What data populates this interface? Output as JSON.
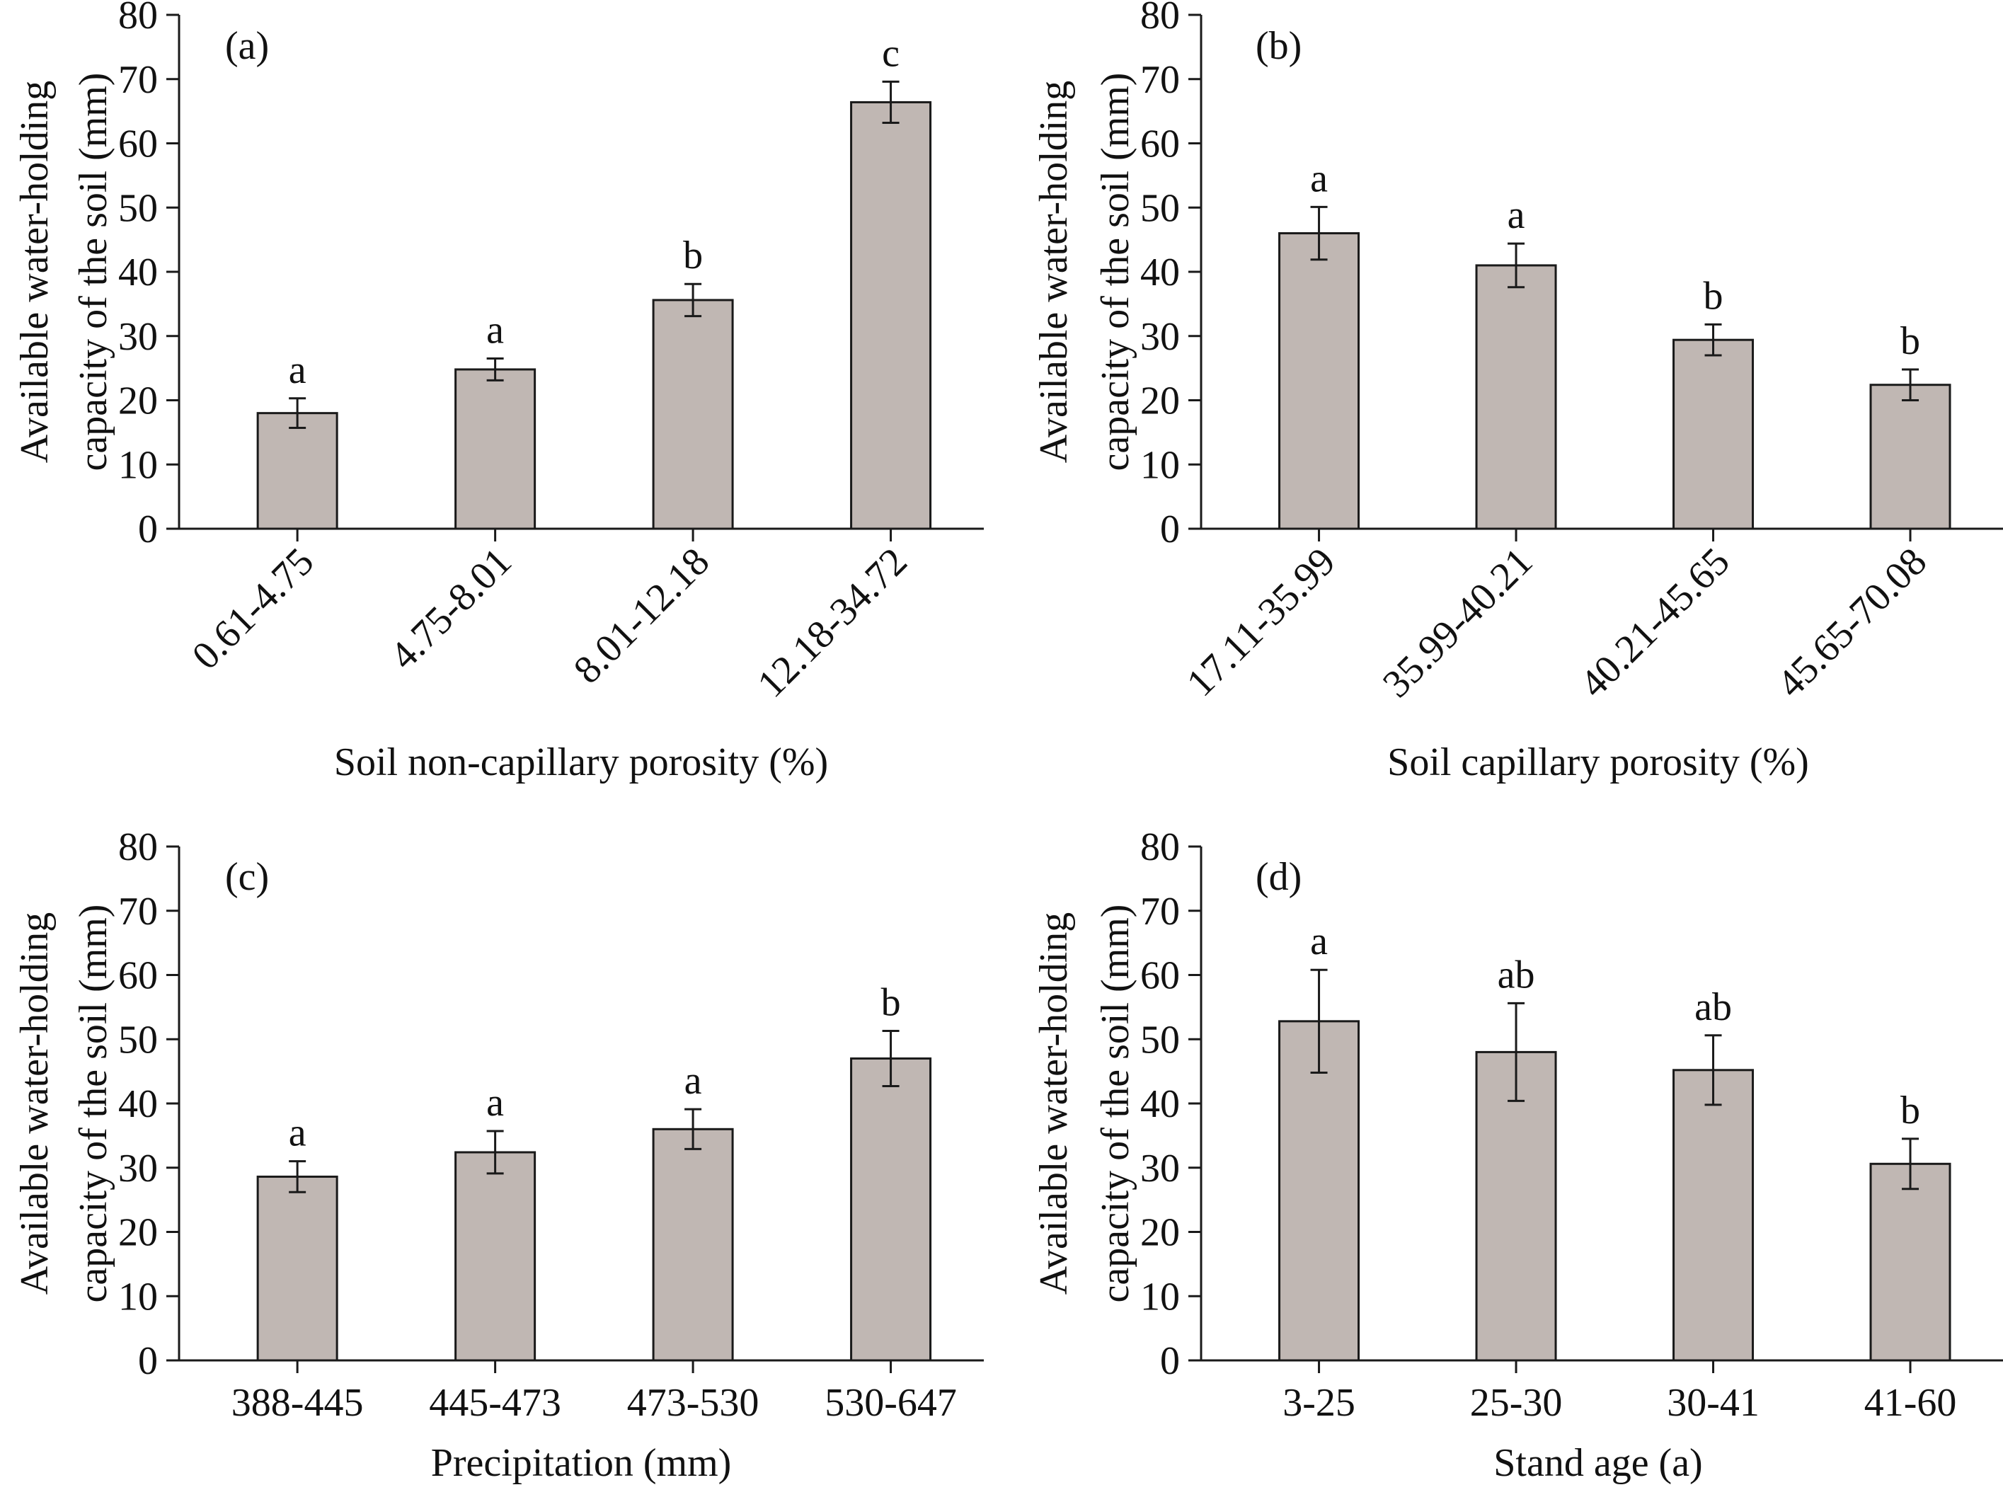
{
  "colors": {
    "bar_fill": "#c0b7b3",
    "stroke": "#1a1a1a",
    "background": "#ffffff"
  },
  "chart_data": [
    {
      "panel_label": "(a)",
      "type": "bar",
      "xlabel": "Soil non-capillary porosity (%)",
      "ylabel_lines": [
        "Available water-holding",
        "capacity of the soil (mm)"
      ],
      "ylim": [
        0,
        80
      ],
      "yticks": [
        0,
        10,
        20,
        30,
        40,
        50,
        60,
        70,
        80
      ],
      "categories": [
        "0.61-4.75",
        "4.75-8.01",
        "8.01-12.18",
        "12.18-34.72"
      ],
      "rotated_tick_labels": true,
      "values": [
        18.0,
        24.8,
        35.6,
        66.4
      ],
      "errors": [
        2.3,
        1.7,
        2.5,
        3.2
      ],
      "significance": [
        "a",
        "a",
        "b",
        "c"
      ]
    },
    {
      "panel_label": "(b)",
      "type": "bar",
      "xlabel": "Soil capillary porosity (%)",
      "ylabel_lines": [
        "Available water-holding",
        "capacity of the soil (mm)"
      ],
      "ylim": [
        0,
        80
      ],
      "yticks": [
        0,
        10,
        20,
        30,
        40,
        50,
        60,
        70,
        80
      ],
      "categories": [
        "17.11-35.99",
        "35.99-40.21",
        "40.21-45.65",
        "45.65-70.08"
      ],
      "rotated_tick_labels": true,
      "values": [
        46.0,
        41.0,
        29.4,
        22.4
      ],
      "errors": [
        4.1,
        3.4,
        2.4,
        2.4
      ],
      "significance": [
        "a",
        "a",
        "b",
        "b"
      ]
    },
    {
      "panel_label": "(c)",
      "type": "bar",
      "xlabel": "Precipitation (mm)",
      "ylabel_lines": [
        "Available water-holding",
        "capacity of the soil (mm)"
      ],
      "ylim": [
        0,
        80
      ],
      "yticks": [
        0,
        10,
        20,
        30,
        40,
        50,
        60,
        70,
        80
      ],
      "categories": [
        "388-445",
        "445-473",
        "473-530",
        "530-647"
      ],
      "rotated_tick_labels": false,
      "values": [
        28.6,
        32.4,
        36.0,
        47.0
      ],
      "errors": [
        2.4,
        3.3,
        3.1,
        4.3
      ],
      "significance": [
        "a",
        "a",
        "a",
        "b"
      ]
    },
    {
      "panel_label": "(d)",
      "type": "bar",
      "xlabel": "Stand age (a)",
      "ylabel_lines": [
        "Available water-holding",
        "capacity of the soil (mm)"
      ],
      "ylim": [
        0,
        80
      ],
      "yticks": [
        0,
        10,
        20,
        30,
        40,
        50,
        60,
        70,
        80
      ],
      "categories": [
        "3-25",
        "25-30",
        "30-41",
        "41-60"
      ],
      "rotated_tick_labels": false,
      "values": [
        52.8,
        48.0,
        45.2,
        30.6
      ],
      "errors": [
        8.0,
        7.6,
        5.4,
        3.9
      ],
      "significance": [
        "a",
        "ab",
        "ab",
        "b"
      ]
    }
  ]
}
